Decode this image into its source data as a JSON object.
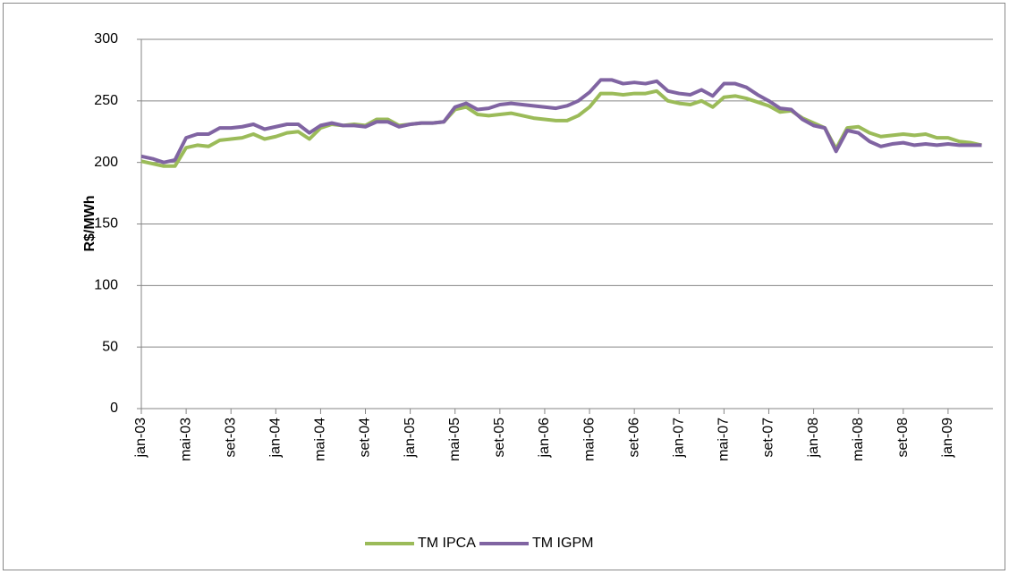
{
  "chart_data": {
    "type": "line",
    "y_label": "R$/MWh",
    "categories": [
      "jan-03",
      null,
      null,
      null,
      "mai-03",
      null,
      null,
      null,
      "set-03",
      null,
      null,
      null,
      "jan-04",
      null,
      null,
      null,
      "mai-04",
      null,
      null,
      null,
      "set-04",
      null,
      null,
      null,
      "jan-05",
      null,
      null,
      null,
      "mai-05",
      null,
      null,
      null,
      "set-05",
      null,
      null,
      null,
      "jan-06",
      null,
      null,
      null,
      "mai-06",
      null,
      null,
      null,
      "set-06",
      null,
      null,
      null,
      "jan-07",
      null,
      null,
      null,
      "mai-07",
      null,
      null,
      null,
      "set-07",
      null,
      null,
      null,
      "jan-08",
      null,
      null,
      null,
      "mai-08",
      null,
      null,
      null,
      "set-08",
      null,
      null,
      null,
      "jan-09",
      null,
      null,
      null
    ],
    "series": [
      {
        "name": "TM IPCA",
        "color": "#9bbb59",
        "values": [
          201,
          199,
          197,
          197,
          212,
          214,
          213,
          218,
          219,
          220,
          223,
          219,
          221,
          224,
          225,
          219,
          228,
          231,
          230,
          231,
          230,
          235,
          235,
          230,
          231,
          232,
          232,
          233,
          243,
          245,
          239,
          238,
          239,
          240,
          238,
          236,
          235,
          234,
          234,
          238,
          245,
          256,
          256,
          255,
          256,
          256,
          258,
          250,
          248,
          247,
          250,
          245,
          253,
          254,
          252,
          249,
          246,
          241,
          242,
          236,
          232,
          228,
          211,
          228,
          229,
          224,
          221,
          222,
          223,
          222,
          223,
          220,
          220,
          217,
          216,
          214
        ]
      },
      {
        "name": "TM IGPM",
        "color": "#8064a2",
        "values": [
          205,
          203,
          200,
          202,
          220,
          223,
          223,
          228,
          228,
          229,
          231,
          227,
          229,
          231,
          231,
          224,
          230,
          232,
          230,
          230,
          229,
          233,
          233,
          229,
          231,
          232,
          232,
          233,
          245,
          248,
          243,
          244,
          247,
          248,
          247,
          246,
          245,
          244,
          246,
          250,
          257,
          267,
          267,
          264,
          265,
          264,
          266,
          258,
          256,
          255,
          259,
          254,
          264,
          264,
          261,
          255,
          250,
          244,
          243,
          235,
          230,
          228,
          209,
          226,
          224,
          217,
          213,
          215,
          216,
          214,
          215,
          214,
          215,
          214,
          214,
          214
        ]
      }
    ],
    "ylim": [
      0,
      300
    ],
    "yticks": [
      0,
      50,
      100,
      150,
      200,
      250,
      300
    ],
    "grid": true,
    "legend": "bottom"
  }
}
